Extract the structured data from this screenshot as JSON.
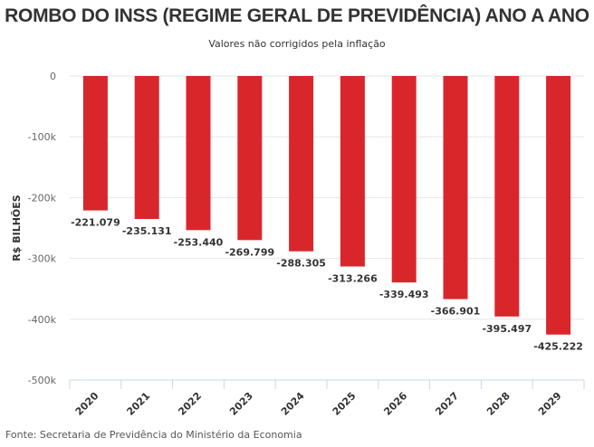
{
  "chart_data": {
    "type": "bar",
    "title": "ROMBO DO INSS (REGIME GERAL DE PREVIDÊNCIA) ANO A ANO",
    "subtitle": "Valores não corrigidos pela inflação",
    "xlabel": "",
    "ylabel": "R$ BILHÕES",
    "categories": [
      "2020",
      "2021",
      "2022",
      "2023",
      "2024",
      "2025",
      "2026",
      "2027",
      "2028",
      "2029"
    ],
    "values": [
      -221.079,
      -235.131,
      -253.44,
      -269.799,
      -288.305,
      -313.266,
      -339.493,
      -366.901,
      -395.497,
      -425.222
    ],
    "data_labels": [
      "-221.079",
      "-235.131",
      "-253.440",
      "-269.799",
      "-288.305",
      "-313.266",
      "-339.493",
      "-366.901",
      "-395.497",
      "-425.222"
    ],
    "ylim": [
      -500,
      0
    ],
    "yticks": [
      0,
      -100,
      -200,
      -300,
      -400,
      -500
    ],
    "ytick_labels": [
      "0",
      "-100k",
      "-200k",
      "-300k",
      "-400k",
      "-500k"
    ],
    "grid": true,
    "legend": "none",
    "bar_color": "#d9262b",
    "source": "Fonte: Secretaria de Previdência do Ministério da Economia"
  }
}
